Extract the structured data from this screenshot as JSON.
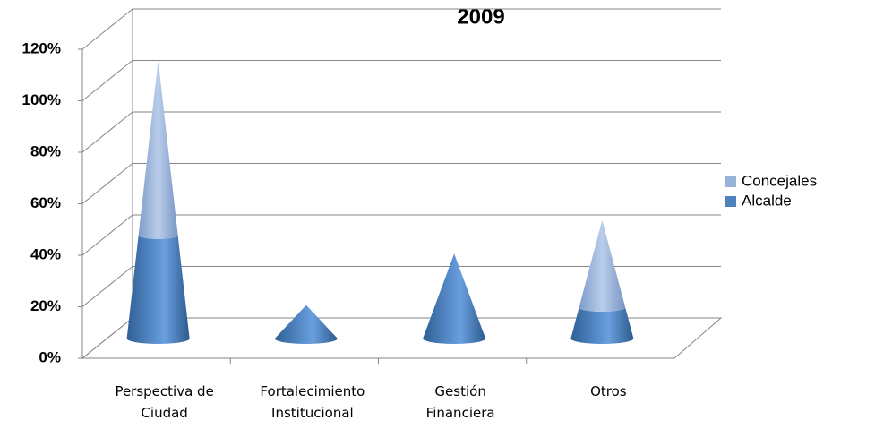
{
  "chart_data": {
    "type": "cone",
    "title": "2009",
    "categories": [
      "Perspectiva de Ciudad",
      "Fortalecimiento Institucional",
      "Gestión Financiera",
      "Otros"
    ],
    "series": [
      {
        "name": "Alcalde",
        "color": "#4f81bd",
        "values": [
          40,
          13,
          33,
          12
        ]
      },
      {
        "name": "Concejales",
        "color": "#95b3d7",
        "values": [
          68,
          0,
          0,
          34
        ]
      }
    ],
    "ylim": [
      0,
      120
    ],
    "yticks": [
      {
        "value": 0,
        "label": "0%"
      },
      {
        "value": 20,
        "label": "20%"
      },
      {
        "value": 40,
        "label": "40%"
      },
      {
        "value": 60,
        "label": "60%"
      },
      {
        "value": 80,
        "label": "80%"
      },
      {
        "value": 100,
        "label": "100%"
      },
      {
        "value": 120,
        "label": "120%"
      }
    ],
    "grid": true,
    "stacked": true,
    "legend": "right"
  }
}
